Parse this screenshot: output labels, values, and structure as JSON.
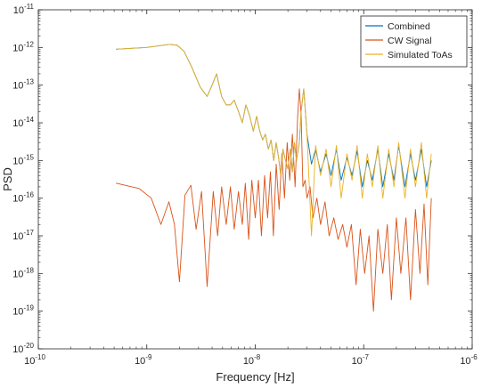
{
  "chart_data": {
    "type": "line",
    "x_scale": "log",
    "y_scale": "log",
    "xlabel": "Frequency [Hz]",
    "ylabel": "PSD",
    "xlim": [
      1e-10,
      1e-06
    ],
    "ylim": [
      1e-20,
      1e-11
    ],
    "x_ticks": [
      {
        "value": 1e-10,
        "label_base": "10",
        "label_exp": "-10"
      },
      {
        "value": 1e-09,
        "label_base": "10",
        "label_exp": "-9"
      },
      {
        "value": 1e-08,
        "label_base": "10",
        "label_exp": "-8"
      },
      {
        "value": 1e-07,
        "label_base": "10",
        "label_exp": "-7"
      },
      {
        "value": 1e-06,
        "label_base": "10",
        "label_exp": "-6"
      }
    ],
    "y_ticks": [
      {
        "value": 1e-20,
        "label_base": "10",
        "label_exp": "-20"
      },
      {
        "value": 1e-19,
        "label_base": "10",
        "label_exp": "-19"
      },
      {
        "value": 1e-18,
        "label_base": "10",
        "label_exp": "-18"
      },
      {
        "value": 1e-17,
        "label_base": "10",
        "label_exp": "-17"
      },
      {
        "value": 1e-16,
        "label_base": "10",
        "label_exp": "-16"
      },
      {
        "value": 1e-15,
        "label_base": "10",
        "label_exp": "-15"
      },
      {
        "value": 1e-14,
        "label_base": "10",
        "label_exp": "-14"
      },
      {
        "value": 1e-13,
        "label_base": "10",
        "label_exp": "-13"
      },
      {
        "value": 1e-12,
        "label_base": "10",
        "label_exp": "-12"
      },
      {
        "value": 1e-11,
        "label_base": "10",
        "label_exp": "-11"
      }
    ],
    "grid": false,
    "legend_position": "top-right",
    "series": [
      {
        "name": "Combined",
        "color": "#0072BD",
        "x": [
          5.2e-10,
          1e-09,
          1.6e-09,
          1.9e-09,
          2.2e-09,
          2.6e-09,
          3.1e-09,
          3.6e-09,
          4e-09,
          4.4e-09,
          4.9e-09,
          5.4e-09,
          5.9e-09,
          6.4e-09,
          7e-09,
          7.6e-09,
          8.2e-09,
          8.9e-09,
          9.6e-09,
          1.03e-08,
          1.1e-08,
          1.17e-08,
          1.24e-08,
          1.32e-08,
          1.4e-08,
          1.48e-08,
          1.56e-08,
          1.64e-08,
          1.72e-08,
          1.8e-08,
          1.9e-08,
          2e-08,
          2.1e-08,
          2.2e-08,
          2.3e-08,
          2.4e-08,
          2.55e-08,
          2.65e-08,
          2.8e-08,
          3e-08,
          3.3e-08,
          3.6e-08,
          4e-08,
          4.5e-08,
          5e-08,
          5.6e-08,
          6.2e-08,
          7e-08,
          7.8e-08,
          8.7e-08,
          9.7e-08,
          1.08e-07,
          1.2e-07,
          1.35e-07,
          1.5e-07,
          1.7e-07,
          1.9e-07,
          2.1e-07,
          2.4e-07,
          2.7e-07,
          3e-07,
          3.4e-07,
          3.8e-07,
          4.2e-07
        ],
        "y": [
          9e-13,
          1e-12,
          1.2e-12,
          1.15e-12,
          8e-13,
          3e-13,
          9e-14,
          5e-14,
          1e-13,
          2e-13,
          5e-14,
          3e-14,
          3e-14,
          4e-14,
          2e-14,
          1e-14,
          3e-14,
          1.5e-14,
          6e-15,
          1.5e-14,
          6e-15,
          3.5e-15,
          5e-15,
          2e-15,
          3.5e-15,
          1e-15,
          3e-15,
          1.2e-15,
          4e-16,
          2e-15,
          1e-15,
          6e-16,
          2e-15,
          5e-16,
          3e-15,
          1e-15,
          3e-15,
          2e-14,
          8e-14,
          5e-15,
          8e-16,
          2e-15,
          5e-16,
          1.5e-15,
          4e-16,
          2e-15,
          3e-16,
          1.2e-15,
          4e-16,
          1.8e-15,
          2e-16,
          1e-15,
          3e-16,
          2e-15,
          2e-16,
          1.5e-15,
          3e-16,
          2.5e-15,
          2e-16,
          1.5e-15,
          3e-16,
          2e-15,
          2e-16,
          1e-15
        ]
      },
      {
        "name": "CW Signal",
        "color": "#D95319",
        "x": [
          5.2e-10,
          8.5e-10,
          1.1e-09,
          1.35e-09,
          1.6e-09,
          1.8e-09,
          2e-09,
          2.25e-09,
          2.55e-09,
          2.85e-09,
          3.2e-09,
          3.6e-09,
          4.1e-09,
          4.5e-09,
          4.9e-09,
          5.4e-09,
          5.9e-09,
          6.4e-09,
          7e-09,
          7.6e-09,
          8.1e-09,
          8.7e-09,
          9.3e-09,
          1e-08,
          1.07e-08,
          1.14e-08,
          1.22e-08,
          1.3e-08,
          1.38e-08,
          1.47e-08,
          1.56e-08,
          1.66e-08,
          1.76e-08,
          1.86e-08,
          1.97e-08,
          2.08e-08,
          2.2e-08,
          2.33e-08,
          2.46e-08,
          2.55e-08,
          2.65e-08,
          2.75e-08,
          2.88e-08,
          3e-08,
          3.2e-08,
          3.4e-08,
          3.7e-08,
          4e-08,
          4.4e-08,
          4.8e-08,
          5.3e-08,
          5.8e-08,
          6.4e-08,
          7e-08,
          7.7e-08,
          8.5e-08,
          9.3e-08,
          1.02e-07,
          1.12e-07,
          1.23e-07,
          1.35e-07,
          1.5e-07,
          1.65e-07,
          1.8e-07,
          2e-07,
          2.2e-07,
          2.45e-07,
          2.7e-07,
          3e-07,
          3.3e-07,
          3.6e-07,
          3.9e-07,
          4.2e-07
        ],
        "y": [
          2.5e-16,
          1.8e-16,
          1e-16,
          2e-17,
          8e-17,
          2e-17,
          6e-19,
          1.2e-16,
          2.2e-16,
          1.5e-17,
          1.5e-16,
          4.5e-19,
          1.5e-16,
          1e-17,
          2e-16,
          2e-17,
          2e-16,
          1.5e-17,
          1.5e-16,
          2e-17,
          2.5e-16,
          8e-18,
          3e-16,
          3e-17,
          3e-16,
          1e-17,
          4e-16,
          3e-17,
          5e-16,
          1e-17,
          8e-16,
          5e-17,
          1.5e-15,
          1e-16,
          3e-15,
          3e-16,
          5e-15,
          2e-16,
          1.5e-14,
          8e-14,
          1.5e-14,
          2e-16,
          3e-16,
          1e-16,
          2e-16,
          3e-17,
          1e-16,
          2e-17,
          8e-17,
          1e-17,
          3e-17,
          8e-18,
          2e-17,
          5e-18,
          2e-17,
          5e-19,
          1.5e-17,
          1e-18,
          1e-17,
          1e-19,
          1.5e-17,
          1e-18,
          2e-17,
          2e-19,
          3e-17,
          1e-18,
          3e-17,
          2e-19,
          5e-17,
          1e-18,
          7e-17,
          5e-19,
          1e-16
        ]
      },
      {
        "name": "Simulated ToAs",
        "color": "#EDB120",
        "x": [
          5.2e-10,
          1e-09,
          1.6e-09,
          1.9e-09,
          2.2e-09,
          2.6e-09,
          3.1e-09,
          3.6e-09,
          4e-09,
          4.4e-09,
          4.9e-09,
          5.4e-09,
          5.9e-09,
          6.4e-09,
          7e-09,
          7.6e-09,
          8.2e-09,
          8.9e-09,
          9.6e-09,
          1.03e-08,
          1.1e-08,
          1.17e-08,
          1.24e-08,
          1.32e-08,
          1.4e-08,
          1.48e-08,
          1.56e-08,
          1.64e-08,
          1.72e-08,
          1.8e-08,
          1.9e-08,
          2e-08,
          2.1e-08,
          2.2e-08,
          2.3e-08,
          2.4e-08,
          2.55e-08,
          2.65e-08,
          2.8e-08,
          3e-08,
          3.3e-08,
          3.6e-08,
          4e-08,
          4.5e-08,
          5e-08,
          5.6e-08,
          6.2e-08,
          7e-08,
          7.8e-08,
          8.7e-08,
          9.7e-08,
          1.08e-07,
          1.2e-07,
          1.35e-07,
          1.5e-07,
          1.7e-07,
          1.9e-07,
          2.1e-07,
          2.4e-07,
          2.7e-07,
          3e-07,
          3.4e-07,
          3.8e-07,
          4.2e-07
        ],
        "y": [
          9e-13,
          1e-12,
          1.2e-12,
          1.15e-12,
          8e-13,
          3e-13,
          9e-14,
          5e-14,
          1e-13,
          2e-13,
          5e-14,
          3e-14,
          3e-14,
          4e-14,
          2e-14,
          1e-14,
          3e-14,
          1.5e-14,
          6e-15,
          1.5e-14,
          6e-15,
          3.5e-15,
          5e-15,
          2e-15,
          3.5e-15,
          1e-15,
          3e-15,
          1.2e-15,
          4e-16,
          2e-15,
          1e-15,
          6e-16,
          2e-15,
          5e-16,
          3e-15,
          1e-15,
          3e-15,
          2e-14,
          8e-14,
          5e-15,
          1e-17,
          2.5e-15,
          4e-16,
          2e-15,
          2e-16,
          2.5e-15,
          1e-16,
          1.5e-15,
          3e-16,
          2.5e-15,
          1e-16,
          1.5e-15,
          2e-16,
          2.5e-15,
          1e-16,
          2e-15,
          2e-16,
          3e-15,
          1e-16,
          2e-15,
          2e-16,
          3e-15,
          1e-16,
          1.5e-15
        ]
      }
    ]
  }
}
